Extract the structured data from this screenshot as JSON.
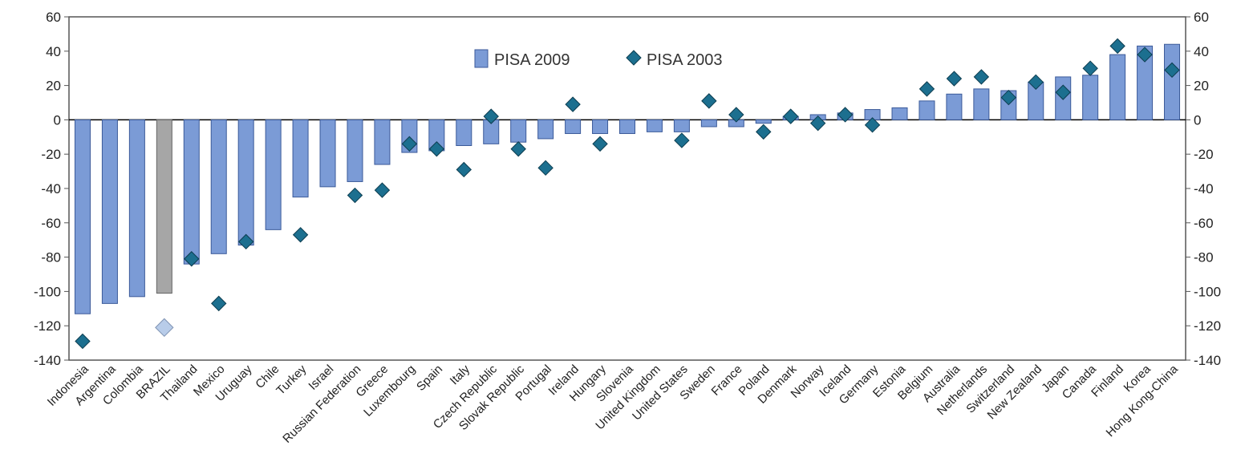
{
  "chart_data": {
    "type": "bar",
    "categories": [
      "Indonesia",
      "Argentina",
      "Colombia",
      "BRAZIL",
      "Thailand",
      "Mexico",
      "Uruguay",
      "Chile",
      "Turkey",
      "Israel",
      "Russian Federation",
      "Greece",
      "Luxembourg",
      "Spain",
      "Italy",
      "Czech Republic",
      "Slovak Republic",
      "Portugal",
      "Ireland",
      "Hungary",
      "Slovenia",
      "United Kingdom",
      "United States",
      "Sweden",
      "France",
      "Poland",
      "Denmark",
      "Norway",
      "Iceland",
      "Germany",
      "Estonia",
      "Belgium",
      "Australia",
      "Netherlands",
      "Switzerland",
      "New Zealand",
      "Japan",
      "Canada",
      "Finland",
      "Korea",
      "Hong Kong-China"
    ],
    "series": [
      {
        "name": "PISA 2009",
        "type": "bar",
        "values": [
          -113,
          -107,
          -103,
          -101,
          -84,
          -78,
          -73,
          -64,
          -45,
          -39,
          -36,
          -26,
          -19,
          -18,
          -15,
          -14,
          -13,
          -11,
          -8,
          -8,
          -8,
          -7,
          -7,
          -4,
          -4,
          -2,
          2,
          3,
          4,
          6,
          7,
          11,
          15,
          18,
          17,
          22,
          25,
          26,
          38,
          43,
          44
        ]
      },
      {
        "name": "PISA 2003",
        "type": "scatter",
        "values": [
          -129,
          null,
          null,
          -121,
          -81,
          -107,
          -71,
          null,
          -67,
          null,
          -44,
          -41,
          -14,
          -17,
          -29,
          2,
          -17,
          -28,
          9,
          -14,
          null,
          null,
          -12,
          11,
          3,
          -7,
          2,
          -2,
          3,
          -3,
          null,
          18,
          24,
          25,
          13,
          22,
          16,
          30,
          43,
          38,
          29
        ]
      }
    ],
    "highlight_category": "BRAZIL",
    "ylim": [
      -140,
      60
    ],
    "yticks": [
      -140,
      -120,
      -100,
      -80,
      -60,
      -40,
      -20,
      0,
      20,
      40,
      60
    ],
    "legend_position": "top-center",
    "colors": {
      "bar": "#7b9bd6",
      "bar_highlight": "#a6a6a6",
      "marker": "#1c6f8f",
      "marker_highlight": "#b8cce9",
      "axis": "#555555",
      "legend_box": "#ffffff"
    }
  }
}
